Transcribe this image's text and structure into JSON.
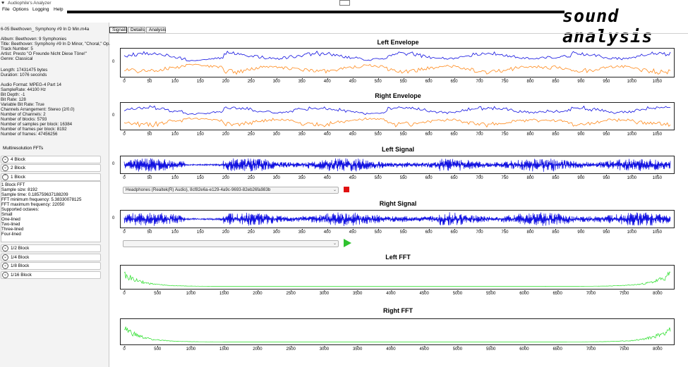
{
  "window": {
    "title": "Audiophile's Analyzer",
    "logo": "sound analysis"
  },
  "menu": [
    "File",
    "Options",
    "Logging",
    "Help"
  ],
  "tabs": [
    "Signals",
    "Details",
    "Analysis"
  ],
  "file": {
    "name": "6-05 Beethoven_ Symphony #9 In D Min.m4a",
    "album": "Album: Beethoven: 9 Symphonies",
    "title": "Title: Beethoven: Symphony #9 In D Minor, \"Choral,\" Op.",
    "track": "Track Number: 5",
    "artist": "Artist: Presto \"O Freunde Nicht Diese Töne!\"",
    "genre": "Genre: Classical",
    "length": "Length: 17431475 bytes",
    "duration": "Duration: 1076 seconds",
    "audio_format": "Audio Format: MPEG-4 Part 14",
    "sample_rate": "SampleRate: 44100 Hz",
    "bit_depth": "Bit Depth: -1",
    "bit_rate": "Bit Rate: 128",
    "vbr": "Variable Bit Rate: True",
    "channels_arrangement": "Channels Arrangement: Stereo (2/0.0)",
    "channels": "Number of Channels: 2",
    "blocks": "Number of blocks: 5793",
    "samples_per_block": "Number of samples per block: 16384",
    "frames_per_block": "Number of frames per block: 8192",
    "frames": "Number of frames: 47456256"
  },
  "multiresolution": {
    "heading": "Multiresolution FFTs",
    "blocks_top": [
      "4 Block",
      "2 Block",
      "1 Block"
    ],
    "block1_details": [
      "1 Block FFT",
      "Sample size: 8192",
      "Sample time: 0.185759637188209",
      "FFT minimum frequency: 5.38330078125",
      "FFT maximum frequency: 22050",
      "Supported octaves:",
      "Small",
      "One-lined",
      "Two-lined",
      "Three-lined",
      "Four-lined"
    ],
    "blocks_bottom": [
      "1/2 Block",
      "1/4 Block",
      "1/8 Block",
      "1/16 Block"
    ]
  },
  "devices": {
    "output_device": "Headphones (Realtek(R) Audio), 8cf82e6a-e129-4a9c-9693-82eb26fa983b",
    "second_device": ""
  },
  "chart_data": [
    {
      "type": "area",
      "title": "Left Envelope",
      "y_ticks": [
        "0"
      ],
      "x_ticks": [
        0,
        50,
        100,
        150,
        200,
        250,
        300,
        350,
        400,
        450,
        500,
        550,
        600,
        650,
        700,
        750,
        800,
        850,
        900,
        950,
        1000,
        1050
      ],
      "xlim": [
        0,
        1076
      ],
      "series": [
        {
          "color": "#1010e0"
        },
        {
          "color": "#ff8a1c"
        }
      ]
    },
    {
      "type": "area",
      "title": "Right Envelope",
      "y_ticks": [
        "0"
      ],
      "x_ticks": [
        0,
        50,
        100,
        150,
        200,
        250,
        300,
        350,
        400,
        450,
        500,
        550,
        600,
        650,
        700,
        750,
        800,
        850,
        900,
        950,
        1000,
        1050
      ],
      "xlim": [
        0,
        1076
      ],
      "series": [
        {
          "color": "#1010e0"
        },
        {
          "color": "#ff8a1c"
        }
      ]
    },
    {
      "type": "line",
      "title": "Left Signal",
      "y_ticks": [
        "0"
      ],
      "x_ticks": [
        0,
        50,
        100,
        150,
        200,
        250,
        300,
        350,
        400,
        450,
        500,
        550,
        600,
        650,
        700,
        750,
        800,
        850,
        900,
        950,
        1000,
        1050
      ],
      "xlim": [
        0,
        1076
      ],
      "series": [
        {
          "color": "#1010e0"
        }
      ]
    },
    {
      "type": "line",
      "title": "Right Signal",
      "y_ticks": [
        "0"
      ],
      "x_ticks": [
        0,
        50,
        100,
        150,
        200,
        250,
        300,
        350,
        400,
        450,
        500,
        550,
        600,
        650,
        700,
        750,
        800,
        850,
        900,
        950,
        1000,
        1050
      ],
      "xlim": [
        0,
        1076
      ],
      "series": [
        {
          "color": "#1010e0"
        }
      ]
    },
    {
      "type": "line",
      "title": "Left FFT",
      "x_ticks": [
        0,
        500,
        1000,
        1500,
        2000,
        2500,
        3000,
        3500,
        4000,
        4500,
        5000,
        5500,
        6000,
        6500,
        7000,
        7500,
        8000
      ],
      "xlim": [
        0,
        8192
      ],
      "series": [
        {
          "color": "#22dd22"
        }
      ]
    },
    {
      "type": "line",
      "title": "Right FFT",
      "x_ticks": [
        0,
        500,
        1000,
        1500,
        2000,
        2500,
        3000,
        3500,
        4000,
        4500,
        5000,
        5500,
        6000,
        6500,
        7000,
        7500,
        8000
      ],
      "xlim": [
        0,
        8192
      ],
      "series": [
        {
          "color": "#22dd22"
        }
      ]
    }
  ]
}
